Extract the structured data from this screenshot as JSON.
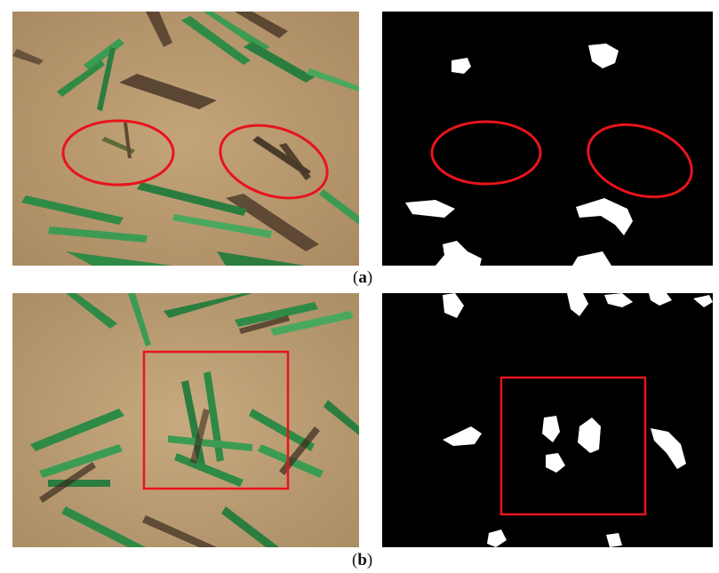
{
  "figure": {
    "row_a": {
      "caption_open": "(",
      "caption_letter": "a",
      "caption_close": ")"
    },
    "row_b": {
      "caption_open": "(",
      "caption_letter": "b",
      "caption_close": ")"
    }
  },
  "colors": {
    "annotation": "#e8141c",
    "soil": "#b79a72",
    "leaf": "#2f8a45",
    "mask_background": "#000000",
    "mask_foreground": "#ffffff"
  }
}
